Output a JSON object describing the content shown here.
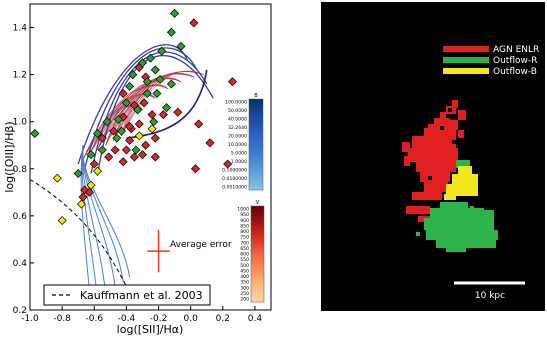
{
  "chart_data": [
    {
      "type": "scatter",
      "xlabel": "log([SII]/Hα)",
      "ylabel": "log([OIII]/Hβ)",
      "xlim": [
        -1.0,
        0.5
      ],
      "ylim": [
        0.2,
        1.5
      ],
      "xticks": [
        "-1.0",
        "-0.8",
        "-0.6",
        "-0.4",
        "-0.2",
        "0.0",
        "0.2",
        "0.4"
      ],
      "yticks": [
        "0.2",
        "0.4",
        "0.6",
        "0.8",
        "1.0",
        "1.2",
        "1.4"
      ],
      "grid": false,
      "legend": {
        "position": "bottom",
        "entries": [
          "Kauffmann et al. 2003"
        ]
      },
      "annotation": "Average error",
      "error_bar": {
        "x": -0.2,
        "y": 0.45,
        "xerr": 0.07,
        "yerr": 0.09
      },
      "series": [
        {
          "color": "#d62728",
          "points": [
            [
              0.02,
              1.42
            ],
            [
              -0.32,
              1.23
            ],
            [
              -0.28,
              1.19
            ],
            [
              -0.42,
              1.12
            ],
            [
              -0.35,
              1.07
            ],
            [
              -0.29,
              1.08
            ],
            [
              -0.17,
              1.03
            ],
            [
              -0.24,
              1.03
            ],
            [
              -0.42,
              1.02
            ],
            [
              -0.32,
              0.99
            ],
            [
              -0.37,
              0.97
            ],
            [
              -0.22,
              0.93
            ],
            [
              -0.28,
              0.9
            ],
            [
              -0.38,
              0.92
            ],
            [
              -0.48,
              0.96
            ],
            [
              -0.55,
              0.93
            ],
            [
              -0.4,
              0.88
            ],
            [
              -0.3,
              0.86
            ],
            [
              -0.47,
              0.88
            ],
            [
              -0.35,
              0.85
            ],
            [
              -0.51,
              0.85
            ],
            [
              -0.6,
              0.82
            ],
            [
              -0.66,
              0.71
            ],
            [
              -0.63,
              0.7
            ],
            [
              -0.67,
              0.68
            ],
            [
              0.26,
              1.17
            ],
            [
              0.12,
              0.91
            ],
            [
              0.23,
              0.82
            ],
            [
              0.03,
              0.8
            ],
            [
              -0.22,
              0.85
            ],
            [
              -0.42,
              0.83
            ],
            [
              -0.38,
              0.98
            ],
            [
              -0.08,
              1.04
            ],
            [
              0.05,
              0.99
            ]
          ]
        },
        {
          "color": "#2ca02c",
          "points": [
            [
              -0.1,
              1.46
            ],
            [
              -0.12,
              1.38
            ],
            [
              -0.06,
              1.32
            ],
            [
              -0.18,
              1.3
            ],
            [
              -0.25,
              1.27
            ],
            [
              -0.3,
              1.25
            ],
            [
              -0.22,
              1.22
            ],
            [
              -0.36,
              1.2
            ],
            [
              -0.19,
              1.18
            ],
            [
              -0.12,
              1.16
            ],
            [
              -0.38,
              1.15
            ],
            [
              -0.27,
              1.12
            ],
            [
              -0.4,
              1.08
            ],
            [
              -0.33,
              1.05
            ],
            [
              -0.15,
              1.06
            ],
            [
              -0.23,
              1.0
            ],
            [
              -0.45,
              1.01
            ],
            [
              -0.52,
              1.0
            ],
            [
              -0.46,
              0.93
            ],
            [
              -0.58,
              0.95
            ],
            [
              -0.55,
              0.88
            ],
            [
              -0.62,
              0.86
            ],
            [
              -0.7,
              0.78
            ],
            [
              -0.34,
              0.88
            ],
            [
              -0.97,
              0.95
            ],
            [
              -0.27,
              1.17
            ],
            [
              -0.21,
              1.12
            ],
            [
              -0.43,
              0.96
            ]
          ]
        },
        {
          "color": "#f5e50a",
          "points": [
            [
              -0.83,
              0.76
            ],
            [
              -0.62,
              0.73
            ],
            [
              -0.68,
              0.65
            ],
            [
              -0.8,
              0.58
            ],
            [
              -0.58,
              0.79
            ],
            [
              -0.32,
              0.94
            ],
            [
              -0.24,
              0.97
            ]
          ]
        }
      ]
    }
  ],
  "colorbars": [
    {
      "label": "B",
      "colors": [
        "#08306b",
        "#1c4a9e",
        "#2c62c2",
        "#3a7fd0",
        "#5aa0dc",
        "#8ec6ea"
      ],
      "ticks": [
        "100.0000",
        "50.0000",
        "40.0000",
        "32.2640",
        "20.0000",
        "10.0000",
        "5.0000",
        "1.0000",
        "0.1000000",
        "0.0100000",
        "0.0010000"
      ]
    },
    {
      "label": "V",
      "colors": [
        "#67000d",
        "#a50f15",
        "#d7301f",
        "#ef6548",
        "#fc8d59",
        "#fdbb84",
        "#fdd49e"
      ],
      "ticks": [
        "1000",
        "950",
        "900",
        "850",
        "800",
        "750",
        "700",
        "650",
        "600",
        "550",
        "500",
        "450",
        "400",
        "350",
        "300",
        "250",
        "200"
      ]
    }
  ],
  "map": {
    "background": "#000000",
    "legend": [
      {
        "label": "AGN ENLR",
        "color": "#e02020"
      },
      {
        "label": "Outflow-R",
        "color": "#2cb34a"
      },
      {
        "label": "Outflow-B",
        "color": "#f2e61f"
      }
    ],
    "scalebar_label": "10 kpc"
  }
}
